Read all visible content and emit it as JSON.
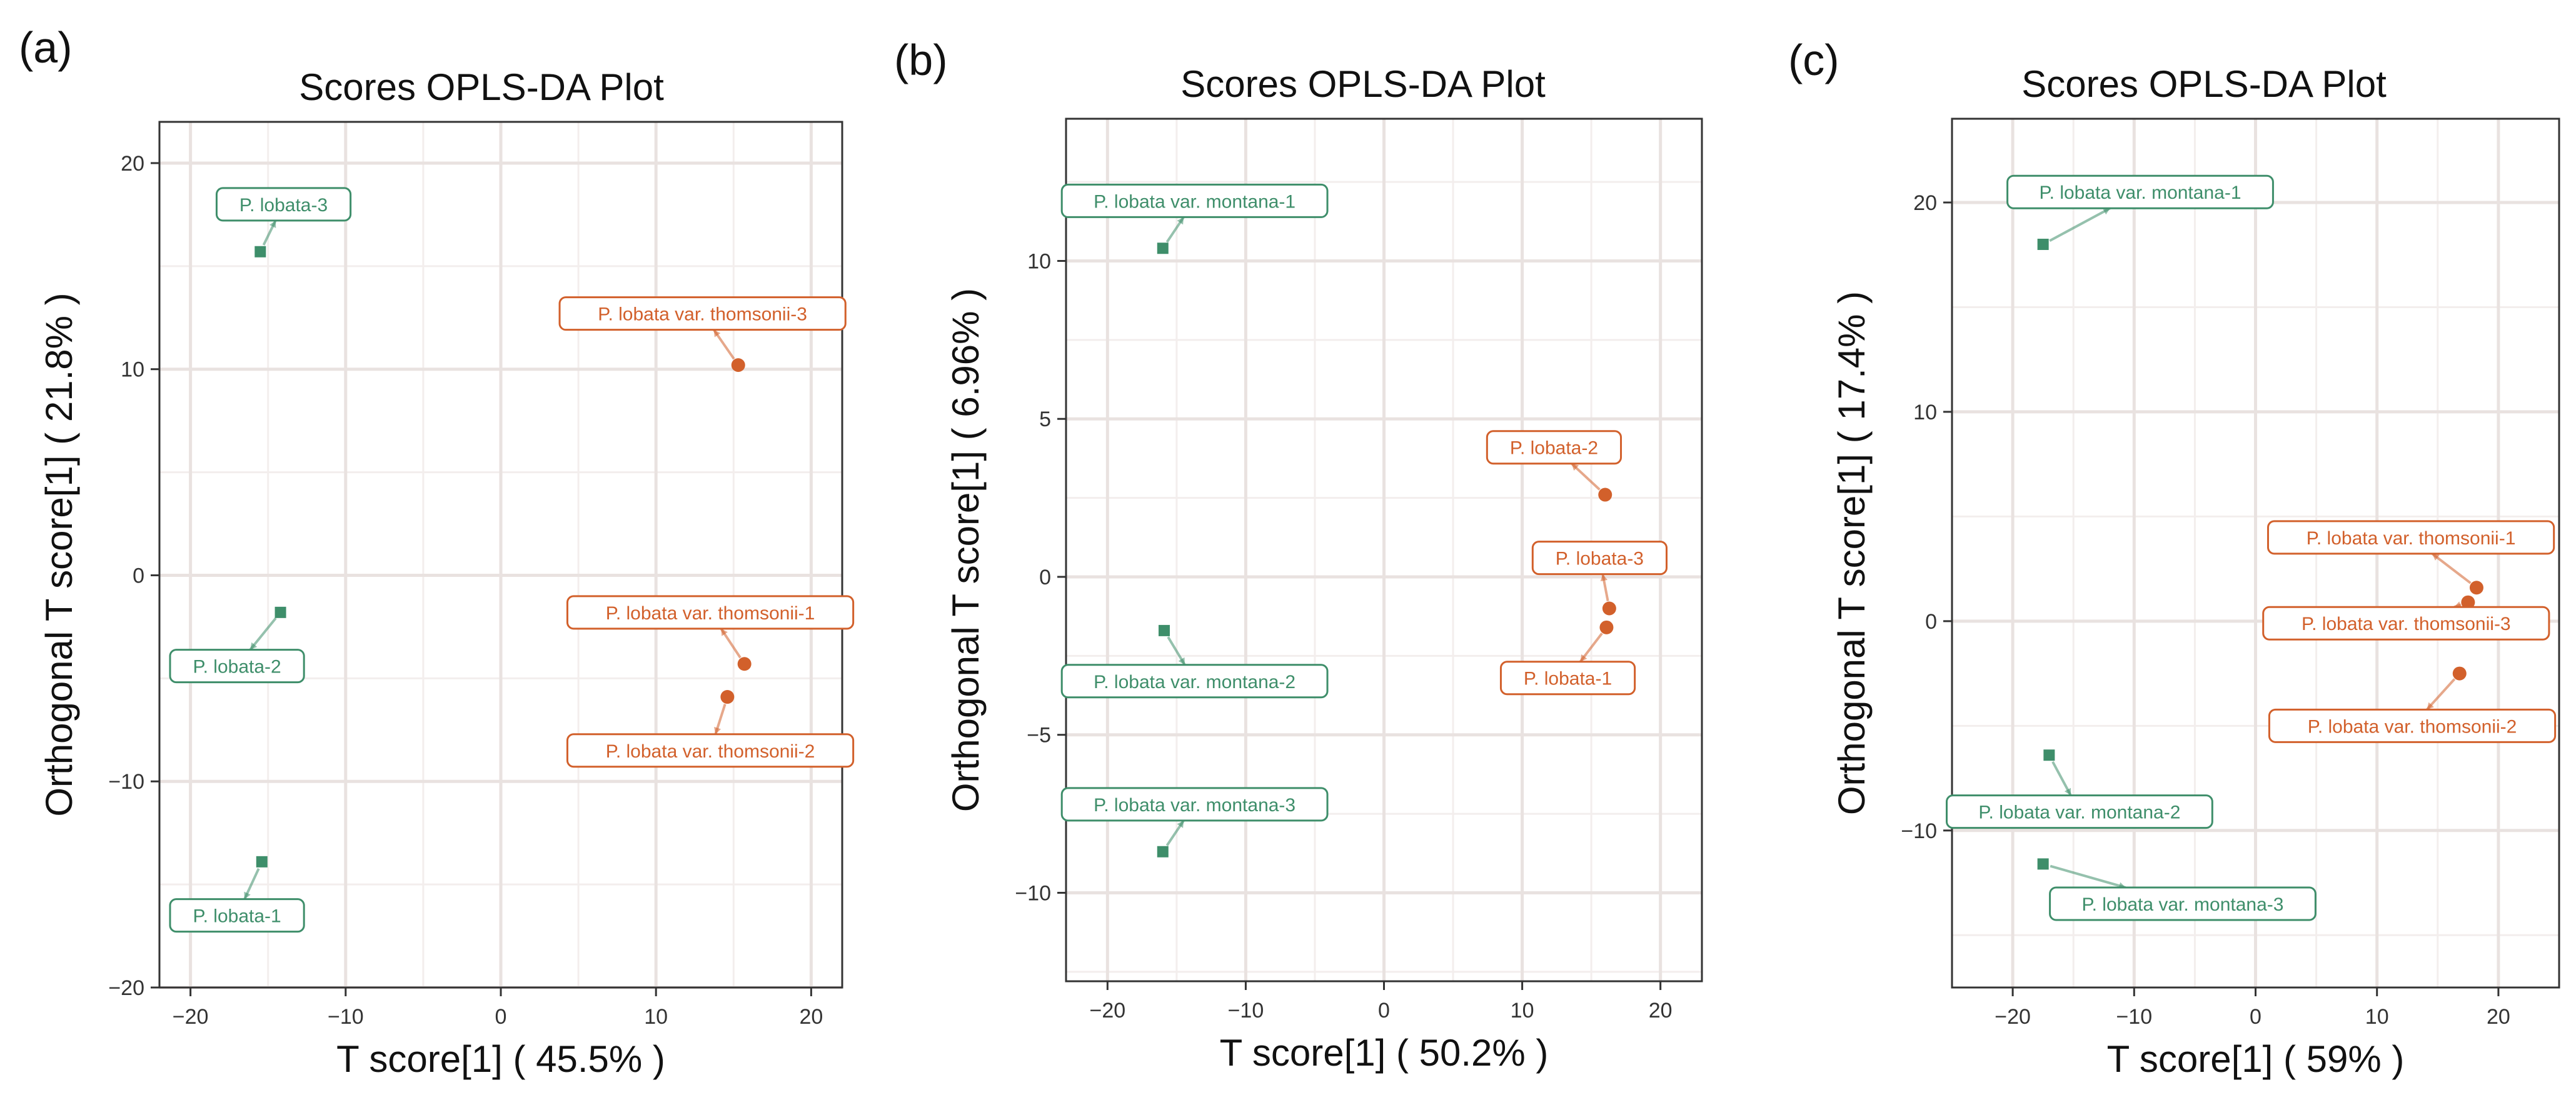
{
  "colors": {
    "green": "#3e8e6a",
    "orange": "#d2602b",
    "grid_major": "#e9e2e0",
    "grid_minor": "#f3eeed",
    "axis_text": "#333333"
  },
  "chart_data": [
    {
      "type": "scatter",
      "panel_label": "(a)",
      "title": "Scores OPLS-DA Plot",
      "xlabel": "T score[1] ( 45.5% )",
      "ylabel": "Orthogonal T score[1] ( 21.8% )",
      "xlim": [
        -22,
        22
      ],
      "ylim": [
        -20,
        22
      ],
      "xticks": [
        -20,
        -10,
        0,
        10,
        20
      ],
      "yticks": [
        -20,
        -10,
        0,
        10,
        20
      ],
      "xtick_labels": [
        "−20",
        "−10",
        "0",
        "10",
        "20"
      ],
      "ytick_labels": [
        "−20",
        "−10",
        "0",
        "10",
        "20"
      ],
      "grid": true,
      "points": [
        {
          "x": -15.5,
          "y": 15.7,
          "group": "green",
          "label": "P. lobata-3",
          "lx": -14.0,
          "ly": 18.0
        },
        {
          "x": -14.2,
          "y": -1.8,
          "group": "green",
          "label": "P. lobata-2",
          "lx": -17.0,
          "ly": -4.4
        },
        {
          "x": -15.4,
          "y": -13.9,
          "group": "green",
          "label": "P. lobata-1",
          "lx": -17.0,
          "ly": -16.5
        },
        {
          "x": 15.3,
          "y": 10.2,
          "group": "orange",
          "label": "P. lobata var. thomsonii-3",
          "lx": 13.0,
          "ly": 12.7
        },
        {
          "x": 15.7,
          "y": -4.3,
          "group": "orange",
          "label": "P. lobata var. thomsonii-1",
          "lx": 13.5,
          "ly": -1.8
        },
        {
          "x": 14.6,
          "y": -5.9,
          "group": "orange",
          "label": "P. lobata var. thomsonii-2",
          "lx": 13.5,
          "ly": -8.5
        }
      ]
    },
    {
      "type": "scatter",
      "panel_label": "(b)",
      "title": "Scores OPLS-DA Plot",
      "xlabel": "T score[1] ( 50.2% )",
      "ylabel": "Orthogonal T score[1] ( 6.96% )",
      "xlim": [
        -23,
        23
      ],
      "ylim": [
        -12.8,
        14.5
      ],
      "xticks": [
        -20,
        -10,
        0,
        10,
        20
      ],
      "yticks": [
        -10,
        -5,
        0,
        5,
        10
      ],
      "xtick_labels": [
        "−20",
        "−10",
        "0",
        "10",
        "20"
      ],
      "ytick_labels": [
        "−10",
        "−5",
        "0",
        "5",
        "10"
      ],
      "grid": true,
      "points": [
        {
          "x": -16.0,
          "y": 10.4,
          "group": "green",
          "label": "P. lobata var. montana-1",
          "lx": -13.7,
          "ly": 11.9
        },
        {
          "x": -15.9,
          "y": -1.7,
          "group": "green",
          "label": "P. lobata var. montana-2",
          "lx": -13.7,
          "ly": -3.3
        },
        {
          "x": -16.0,
          "y": -8.7,
          "group": "green",
          "label": "P. lobata var. montana-3",
          "lx": -13.7,
          "ly": -7.2
        },
        {
          "x": 16.0,
          "y": 2.6,
          "group": "orange",
          "label": "P. lobata-2",
          "lx": 12.3,
          "ly": 4.1
        },
        {
          "x": 16.3,
          "y": -1.0,
          "group": "orange",
          "label": "P. lobata-3",
          "lx": 15.6,
          "ly": 0.6
        },
        {
          "x": 16.1,
          "y": -1.6,
          "group": "orange",
          "label": "P. lobata-1",
          "lx": 13.3,
          "ly": -3.2
        }
      ]
    },
    {
      "type": "scatter",
      "panel_label": "(c)",
      "title": "Scores OPLS-DA Plot",
      "xlabel": "T score[1] ( 59% )",
      "ylabel": "Orthogonal T score[1] ( 17.4% )",
      "xlim": [
        -25,
        25
      ],
      "ylim": [
        -17.5,
        24
      ],
      "xticks": [
        -20,
        -10,
        0,
        10,
        20
      ],
      "yticks": [
        -10,
        0,
        10,
        20
      ],
      "xtick_labels": [
        "−20",
        "−10",
        "0",
        "10",
        "20"
      ],
      "ytick_labels": [
        "−10",
        "0",
        "10",
        "20"
      ],
      "grid": true,
      "points": [
        {
          "x": -17.5,
          "y": 18.0,
          "group": "green",
          "label": "P. lobata var. montana-1",
          "lx": -9.5,
          "ly": 20.5
        },
        {
          "x": -17.0,
          "y": -6.4,
          "group": "green",
          "label": "P. lobata var. montana-2",
          "lx": -14.5,
          "ly": -9.1
        },
        {
          "x": -17.5,
          "y": -11.6,
          "group": "green",
          "label": "P. lobata var. montana-3",
          "lx": -6.0,
          "ly": -13.5
        },
        {
          "x": 18.2,
          "y": 1.6,
          "group": "orange",
          "label": "P. lobata var. thomsonii-1",
          "lx": 12.8,
          "ly": 4.0
        },
        {
          "x": 17.5,
          "y": 0.9,
          "group": "orange",
          "label": "P. lobata var. thomsonii-3",
          "lx": 12.4,
          "ly": -0.1
        },
        {
          "x": 16.8,
          "y": -2.5,
          "group": "orange",
          "label": "P. lobata var. thomsonii-2",
          "lx": 12.9,
          "ly": -5.0
        }
      ]
    }
  ]
}
